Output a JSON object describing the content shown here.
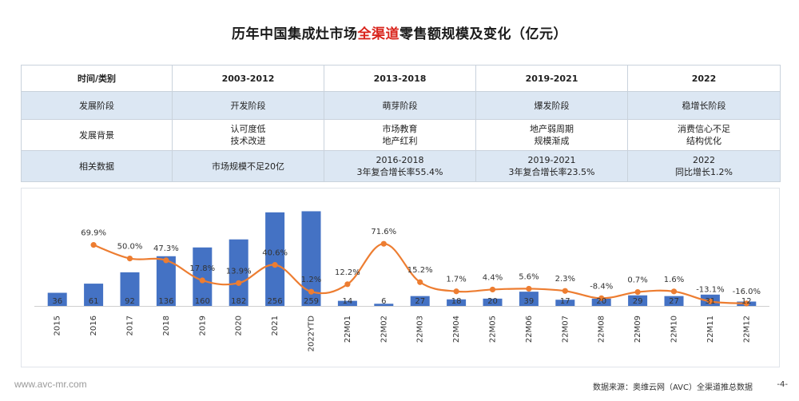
{
  "title": {
    "prefix": "历年中国集成灶市场",
    "highlight": "全渠道",
    "suffix": "零售额规模及变化（亿元）"
  },
  "table": {
    "headers": [
      "时间/类别",
      "2003-2012",
      "2013-2018",
      "2019-2021",
      "2022"
    ],
    "rows": [
      {
        "label": "发展阶段",
        "cells": [
          "开发阶段",
          "萌芽阶段",
          "爆发阶段",
          "稳增长阶段"
        ]
      },
      {
        "label": "发展背景",
        "cells": [
          "认可度低\n技术改进",
          "市场教育\n地产红利",
          "地产弱周期\n规模渐成",
          "消费信心不足\n结构优化"
        ]
      },
      {
        "label": "相关数据",
        "cells": [
          "市场规模不足20亿",
          "2016-2018\n3年复合增长率55.4%",
          "2019-2021\n3年复合增长率23.5%",
          "2022\n同比增长1.2%"
        ]
      }
    ]
  },
  "chart_data": {
    "type": "bar",
    "categories": [
      "2015",
      "2016",
      "2017",
      "2018",
      "2019",
      "2020",
      "2021",
      "2022YTD",
      "22M01",
      "22M02",
      "22M03",
      "22M04",
      "22M05",
      "22M06",
      "22M07",
      "22M08",
      "22M09",
      "22M10",
      "22M11",
      "22M12"
    ],
    "series": [
      {
        "type": "bar",
        "values": [
          36,
          61,
          92,
          136,
          160,
          182,
          256,
          259,
          14,
          6,
          27,
          18,
          20,
          39,
          17,
          20,
          29,
          27,
          31,
          12
        ]
      },
      {
        "type": "line",
        "values": [
          null,
          69.9,
          50.0,
          47.3,
          17.8,
          13.9,
          40.6,
          1.2,
          12.2,
          71.6,
          15.2,
          1.7,
          4.4,
          5.6,
          2.3,
          -8.4,
          0.7,
          1.6,
          -13.1,
          -16.0
        ]
      }
    ],
    "growth_labels": [
      "",
      "69.9%",
      "50.0%",
      "47.3%",
      "17.8%",
      "13.9%",
      "40.6%",
      "1.2%",
      "12.2%",
      "71.6%",
      "15.2%",
      "1.7%",
      "4.4%",
      "5.6%",
      "2.3%",
      "-8.4%",
      "0.7%",
      "1.6%",
      "-13.1%",
      "-16.0%"
    ],
    "ylim_bar": [
      0,
      260
    ],
    "ylim_line": [
      -35,
      100
    ],
    "legend": "none",
    "grid": false,
    "colors": {
      "bar": "#4472c4",
      "line": "#ed7d31",
      "label": "#333333"
    }
  },
  "footer": {
    "website": "www.avc-mr.com",
    "source": "数据来源：奥维云网（AVC）全渠道推总数据",
    "page": "-4-"
  }
}
